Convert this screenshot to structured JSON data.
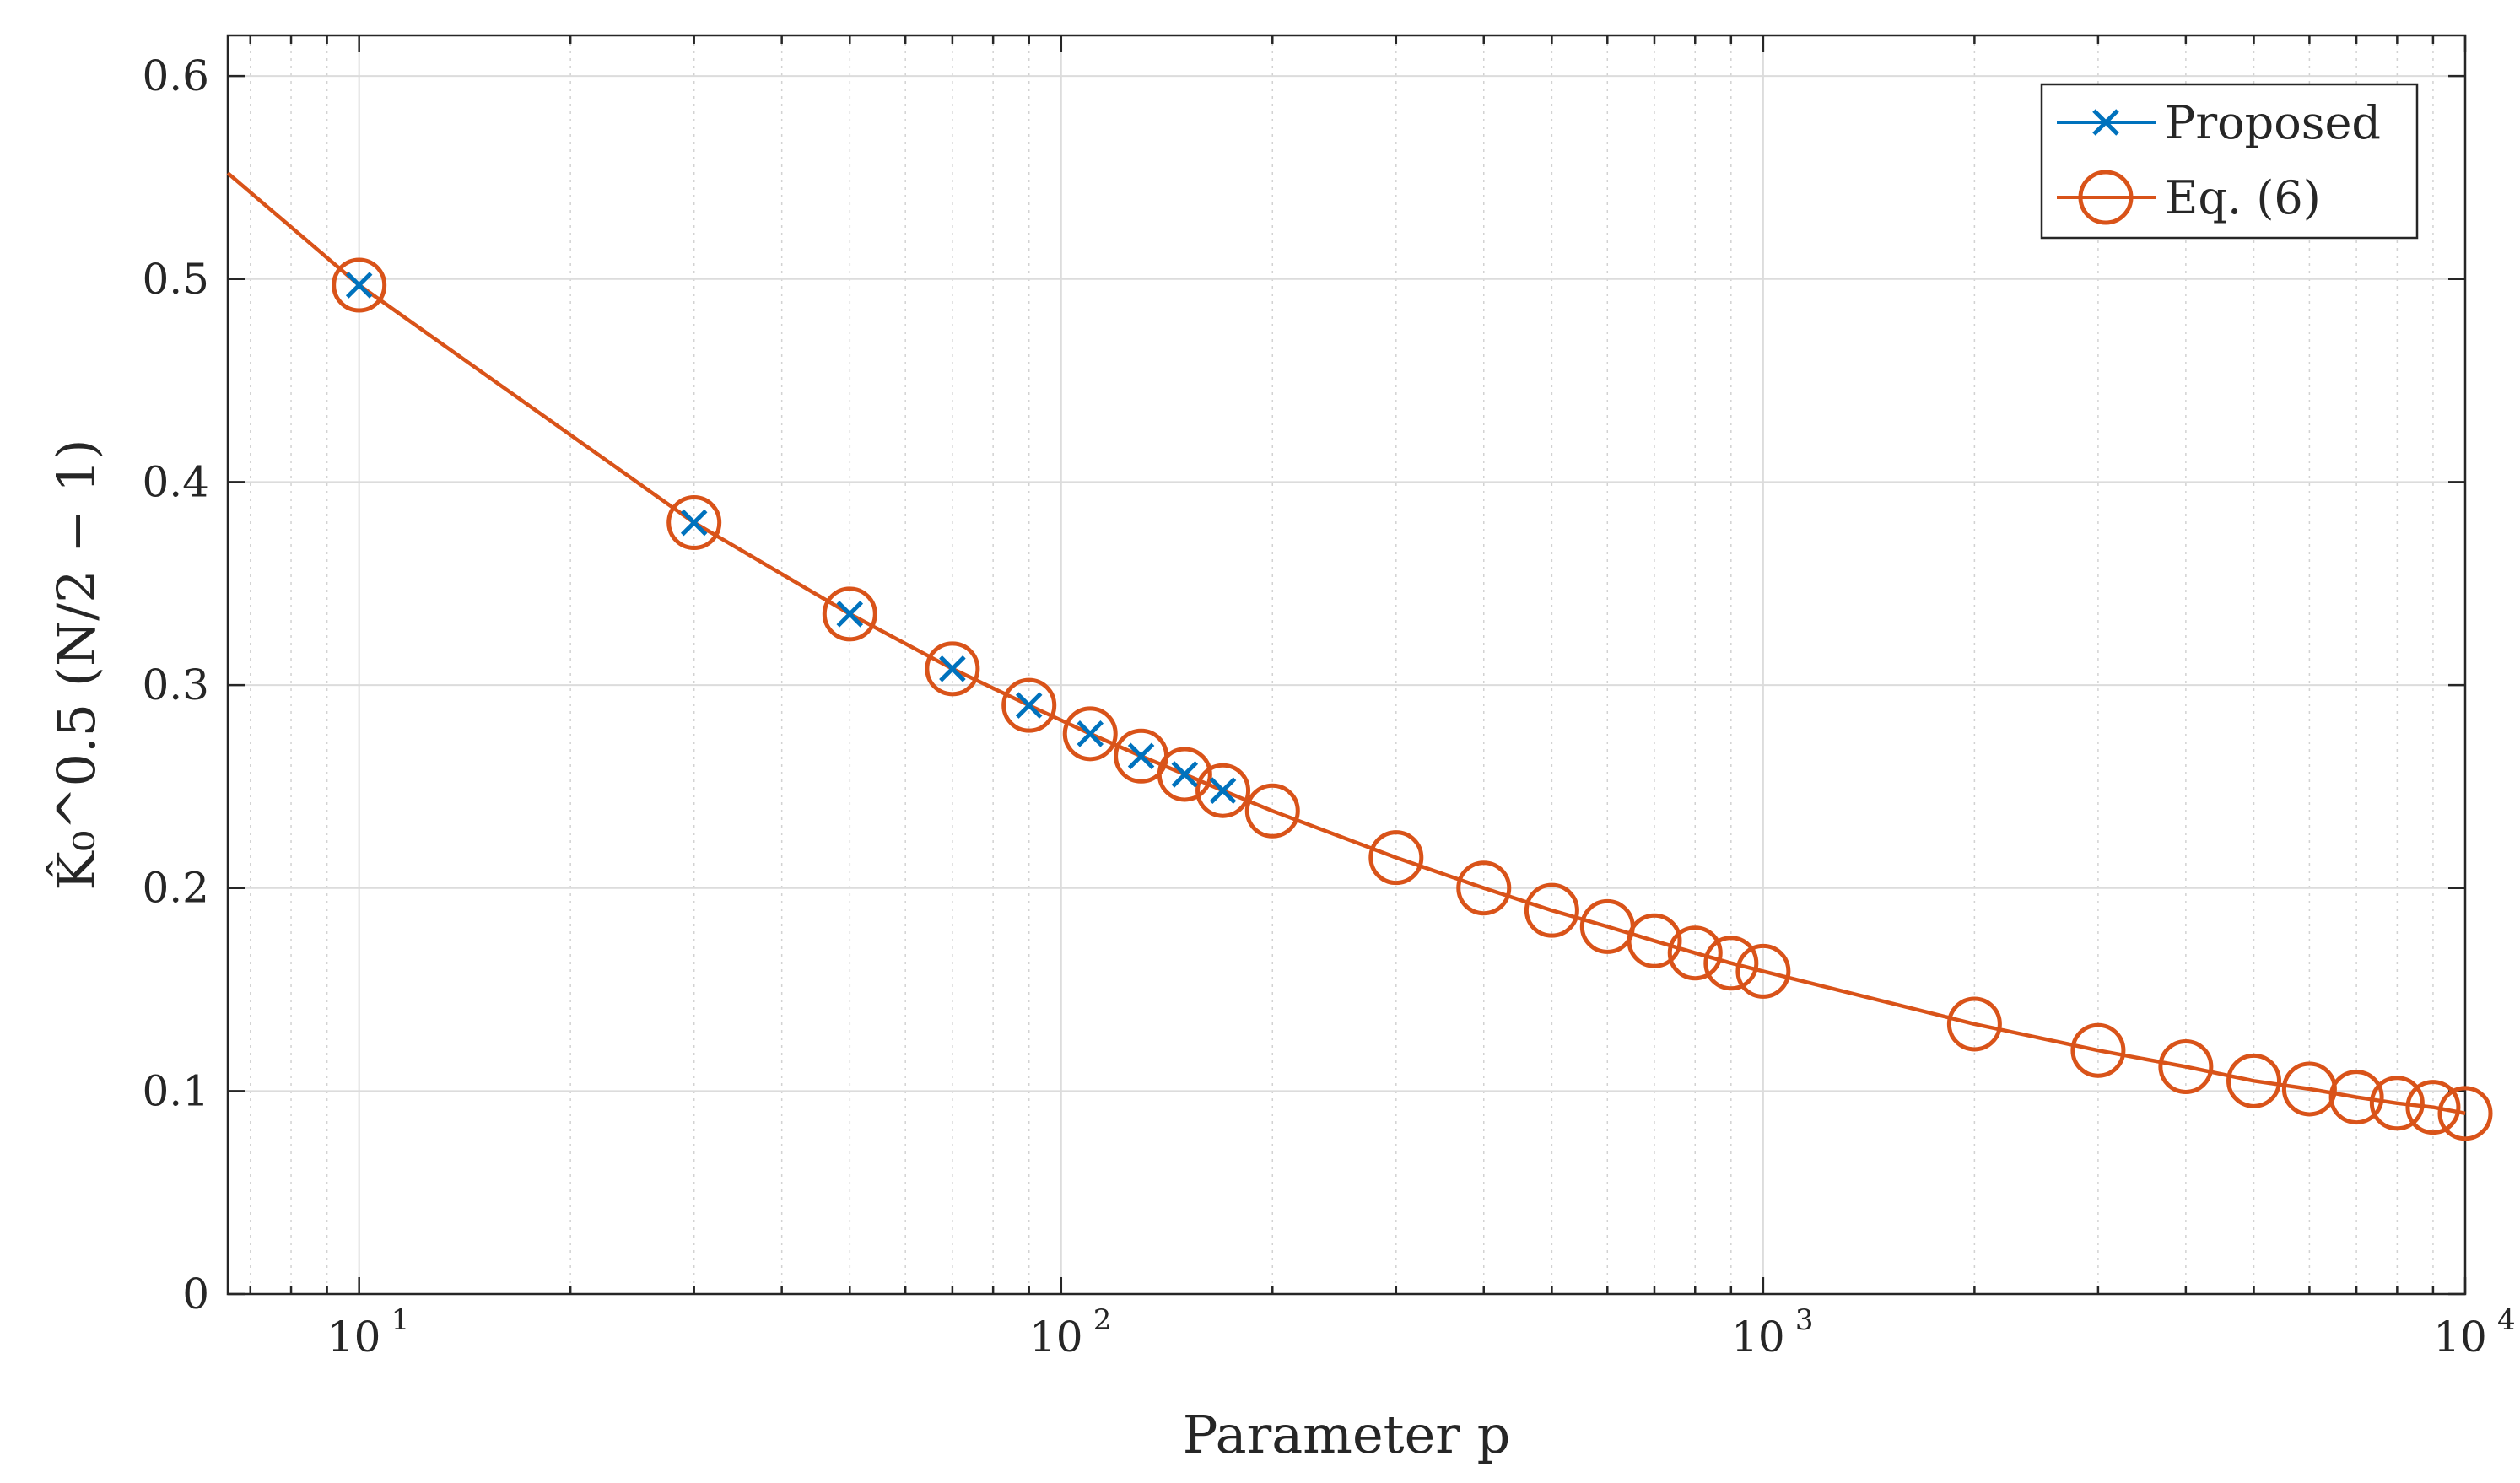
{
  "chart_data": {
    "type": "line",
    "xlabel": "Parameter p",
    "ylabel": "K̂₀^0.5 (N/2 − 1)",
    "x_scale": "log",
    "xlim": [
      6.5,
      10000
    ],
    "ylim": [
      0,
      0.62
    ],
    "grid": true,
    "legend_position": "top-right",
    "x_ticks": [
      {
        "value": 10,
        "base": "10",
        "exp": "1"
      },
      {
        "value": 100,
        "base": "10",
        "exp": "2"
      },
      {
        "value": 1000,
        "base": "10",
        "exp": "3"
      },
      {
        "value": 10000,
        "base": "10",
        "exp": "4"
      }
    ],
    "y_ticks": [
      {
        "value": 0,
        "label": "0"
      },
      {
        "value": 0.1,
        "label": "0.1"
      },
      {
        "value": 0.2,
        "label": "0.2"
      },
      {
        "value": 0.3,
        "label": "0.3"
      },
      {
        "value": 0.4,
        "label": "0.4"
      },
      {
        "value": 0.5,
        "label": "0.5"
      },
      {
        "value": 0.6,
        "label": "0.6"
      }
    ],
    "series": [
      {
        "name": "Proposed",
        "color": "#0072BD",
        "marker": "x",
        "line": false,
        "x": [
          10,
          30,
          50,
          70,
          90,
          110,
          130,
          150,
          170
        ],
        "y": [
          0.497,
          0.38,
          0.335,
          0.308,
          0.29,
          0.276,
          0.265,
          0.256,
          0.248
        ]
      },
      {
        "name": "Eq. (6)",
        "color": "#D95319",
        "marker": "circle",
        "line": true,
        "x": [
          10,
          30,
          50,
          70,
          90,
          110,
          130,
          150,
          170,
          200,
          300,
          400,
          500,
          600,
          700,
          800,
          900,
          1000,
          2000,
          3000,
          4000,
          5000,
          6000,
          7000,
          8000,
          9000,
          10000
        ],
        "y": [
          0.497,
          0.38,
          0.335,
          0.308,
          0.29,
          0.276,
          0.265,
          0.256,
          0.248,
          0.238,
          0.215,
          0.2,
          0.189,
          0.181,
          0.174,
          0.168,
          0.163,
          0.159,
          0.133,
          0.12,
          0.112,
          0.105,
          0.101,
          0.097,
          0.094,
          0.092,
          0.089
        ]
      }
    ]
  }
}
